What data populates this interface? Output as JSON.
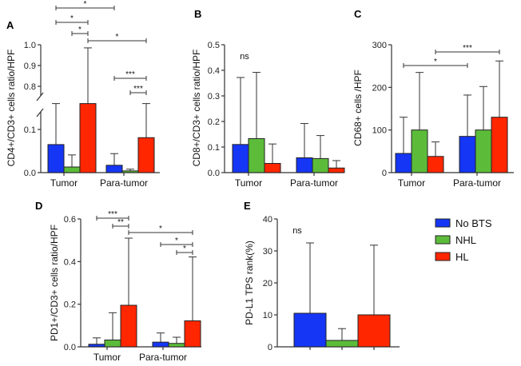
{
  "colors": {
    "No BTS": "#1536f5",
    "NHL": "#5cbc3a",
    "HL": "#ff2600"
  },
  "legend": [
    {
      "label": "No BTS",
      "color": "#1536f5"
    },
    {
      "label": "NHL",
      "color": "#5cbc3a"
    },
    {
      "label": "HL",
      "color": "#ff2600"
    }
  ],
  "chart_data": [
    {
      "panel": "A",
      "type": "bar",
      "ylabel": "CD4+/CD3+ cells ratio/HPF",
      "categories": [
        "Tumor",
        "Para-tumor"
      ],
      "broken_axis": {
        "lower": [
          0,
          0.16
        ],
        "upper": [
          0.75,
          1.0
        ]
      },
      "yticks_lower": [
        "0.0",
        "0.1"
      ],
      "yticks_upper": [
        "0.8",
        "0.9",
        "1.0"
      ],
      "series": [
        {
          "name": "No BTS",
          "values": [
            0.065,
            0.017
          ],
          "errors": [
            0.16,
            0.044
          ]
        },
        {
          "name": "NHL",
          "values": [
            0.013,
            0.004
          ],
          "errors": [
            0.041,
            0.008
          ]
        },
        {
          "name": "HL",
          "values": [
            0.16,
            0.081
          ],
          "errors": [
            0.985,
            0.16
          ]
        }
      ],
      "significance": [
        {
          "from": [
            "Tumor",
            "No BTS"
          ],
          "to": [
            "Para-tumor",
            "No BTS"
          ],
          "label": "*"
        },
        {
          "from": [
            "Tumor",
            "No BTS"
          ],
          "to": [
            "Tumor",
            "HL"
          ],
          "label": "*"
        },
        {
          "from": [
            "Tumor",
            "NHL"
          ],
          "to": [
            "Tumor",
            "HL"
          ],
          "label": "*"
        },
        {
          "from": [
            "Tumor",
            "HL"
          ],
          "to": [
            "Para-tumor",
            "HL"
          ],
          "label": "*"
        },
        {
          "from": [
            "Para-tumor",
            "No BTS"
          ],
          "to": [
            "Para-tumor",
            "HL"
          ],
          "label": "***"
        },
        {
          "from": [
            "Para-tumor",
            "NHL"
          ],
          "to": [
            "Para-tumor",
            "HL"
          ],
          "label": "***"
        }
      ]
    },
    {
      "panel": "B",
      "type": "bar",
      "ylabel": "CD8+/CD3+ cells ratio/HPF",
      "categories": [
        "Tumor",
        "Para-tumor"
      ],
      "ylim": [
        0,
        0.5
      ],
      "yticks": [
        "0.0",
        "0.1",
        "0.2",
        "0.3",
        "0.4",
        "0.5"
      ],
      "series": [
        {
          "name": "No BTS",
          "values": [
            0.11,
            0.058
          ],
          "errors": [
            0.372,
            0.192
          ]
        },
        {
          "name": "NHL",
          "values": [
            0.133,
            0.055
          ],
          "errors": [
            0.392,
            0.145
          ]
        },
        {
          "name": "HL",
          "values": [
            0.036,
            0.018
          ],
          "errors": [
            0.112,
            0.047
          ]
        }
      ],
      "annotation": "ns"
    },
    {
      "panel": "C",
      "type": "bar",
      "ylabel": "CD68+ cells /HPF",
      "categories": [
        "Tumor",
        "Para-tumor"
      ],
      "ylim": [
        0,
        300
      ],
      "yticks": [
        "0",
        "100",
        "200",
        "300"
      ],
      "series": [
        {
          "name": "No BTS",
          "values": [
            45,
            85
          ],
          "errors": [
            130,
            182
          ]
        },
        {
          "name": "NHL",
          "values": [
            100,
            100
          ],
          "errors": [
            235,
            202
          ]
        },
        {
          "name": "HL",
          "values": [
            38,
            130
          ],
          "errors": [
            72,
            262
          ]
        }
      ],
      "significance": [
        {
          "from": [
            "Tumor",
            "No BTS"
          ],
          "to": [
            "Para-tumor",
            "No BTS"
          ],
          "label": "*"
        },
        {
          "from": [
            "Tumor",
            "HL"
          ],
          "to": [
            "Para-tumor",
            "HL"
          ],
          "label": "***"
        }
      ]
    },
    {
      "panel": "D",
      "type": "bar",
      "ylabel": "PD1+/CD3+ cells ratio/HPF",
      "categories": [
        "Tumor",
        "Para-tumor"
      ],
      "ylim": [
        0,
        0.6
      ],
      "yticks": [
        "0.0",
        "0.2",
        "0.4",
        "0.6"
      ],
      "series": [
        {
          "name": "No BTS",
          "values": [
            0.012,
            0.022
          ],
          "errors": [
            0.042,
            0.065
          ]
        },
        {
          "name": "NHL",
          "values": [
            0.032,
            0.016
          ],
          "errors": [
            0.16,
            0.045
          ]
        },
        {
          "name": "HL",
          "values": [
            0.195,
            0.122
          ],
          "errors": [
            0.51,
            0.422
          ]
        }
      ],
      "significance": [
        {
          "from": [
            "Tumor",
            "No BTS"
          ],
          "to": [
            "Tumor",
            "HL"
          ],
          "label": "***"
        },
        {
          "from": [
            "Tumor",
            "NHL"
          ],
          "to": [
            "Tumor",
            "HL"
          ],
          "label": "**"
        },
        {
          "from": [
            "Tumor",
            "HL"
          ],
          "to": [
            "Para-tumor",
            "HL"
          ],
          "label": "*"
        },
        {
          "from": [
            "Para-tumor",
            "No BTS"
          ],
          "to": [
            "Para-tumor",
            "HL"
          ],
          "label": "*"
        },
        {
          "from": [
            "Para-tumor",
            "NHL"
          ],
          "to": [
            "Para-tumor",
            "HL"
          ],
          "label": "*"
        }
      ]
    },
    {
      "panel": "E",
      "type": "bar",
      "ylabel": "PD-L1 TPS rank(%)",
      "categories": [
        ""
      ],
      "ylim": [
        0,
        40
      ],
      "yticks": [
        "0",
        "10",
        "20",
        "30",
        "40"
      ],
      "series": [
        {
          "name": "No BTS",
          "values": [
            10.5
          ],
          "errors": [
            32.5
          ]
        },
        {
          "name": "NHL",
          "values": [
            2.0
          ],
          "errors": [
            5.7
          ]
        },
        {
          "name": "HL",
          "values": [
            10.0
          ],
          "errors": [
            31.8
          ]
        }
      ],
      "annotation": "ns"
    }
  ]
}
